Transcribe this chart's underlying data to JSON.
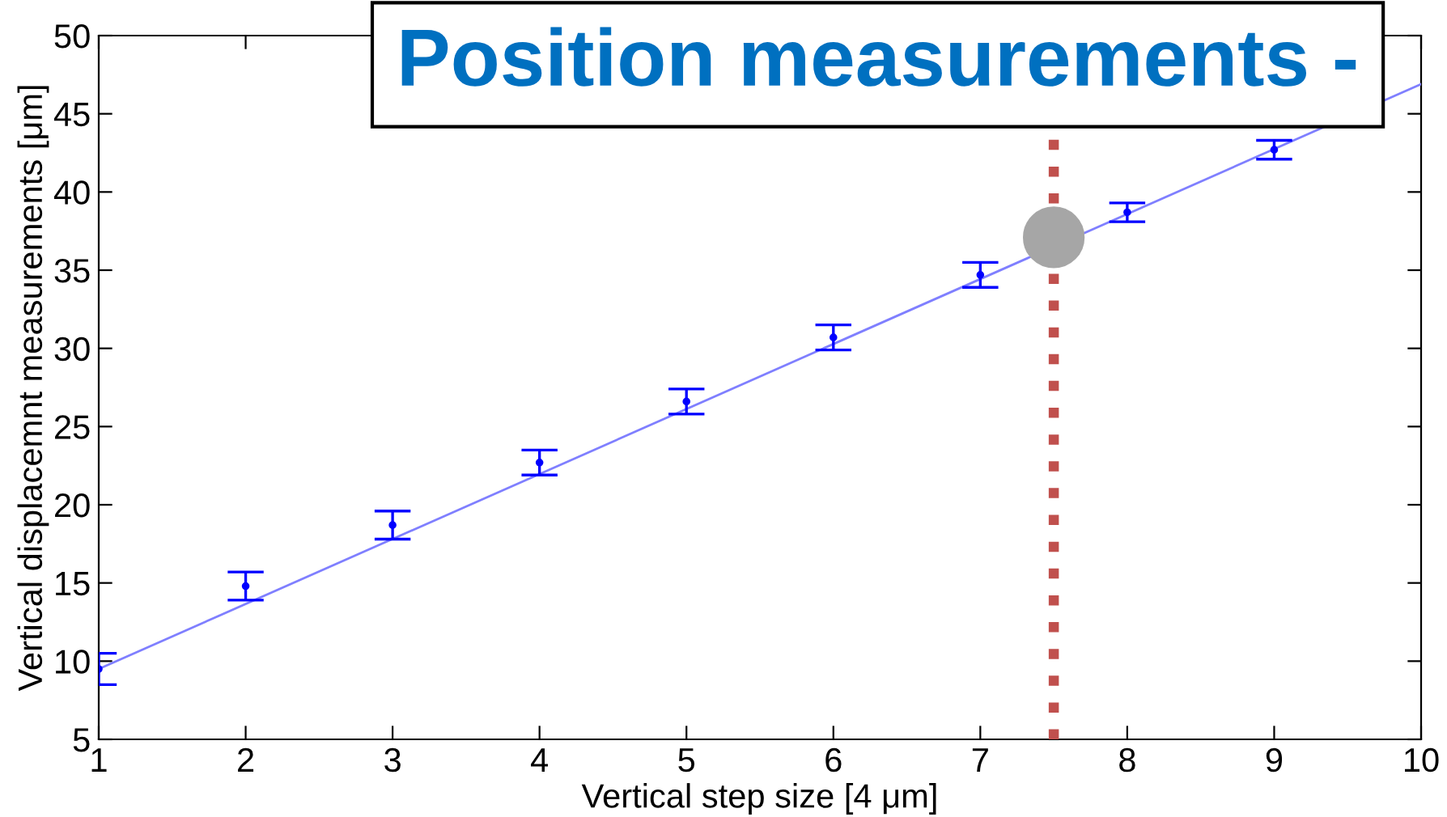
{
  "chart_data": {
    "type": "scatter",
    "title": "Position measurements -",
    "xlabel": "Vertical step size [4 μm]",
    "ylabel": "Vertical displacemnt measurements [μm]",
    "x": [
      1,
      2,
      3,
      4,
      5,
      6,
      7,
      8,
      9
    ],
    "series": [
      {
        "color": "#0000ff",
        "marker": "circle",
        "values": [
          9.5,
          14.8,
          18.7,
          22.7,
          26.6,
          30.7,
          34.7,
          38.7,
          42.7
        ],
        "errors": [
          1.0,
          0.9,
          0.9,
          0.8,
          0.8,
          0.8,
          0.8,
          0.6,
          0.6
        ]
      },
      {
        "type": "line",
        "color": "#7f7fff",
        "x": [
          1,
          10
        ],
        "values": [
          9.5,
          46.9
        ]
      },
      {
        "color": "#a6a6a6",
        "marker": "circle",
        "x": [
          7.5
        ],
        "values": [
          37.1
        ]
      }
    ],
    "ref_lines": [
      {
        "axis": "x",
        "value": 7.5,
        "color": "#c0504d",
        "line_style": "dotted"
      }
    ],
    "xlim": [
      1,
      10
    ],
    "ylim": [
      5,
      50
    ],
    "xticks": [
      1,
      2,
      3,
      4,
      5,
      6,
      7,
      8,
      9,
      10
    ],
    "yticks": [
      5,
      10,
      15,
      20,
      25,
      30,
      35,
      40,
      45,
      50
    ],
    "grid": false,
    "legend": false
  }
}
